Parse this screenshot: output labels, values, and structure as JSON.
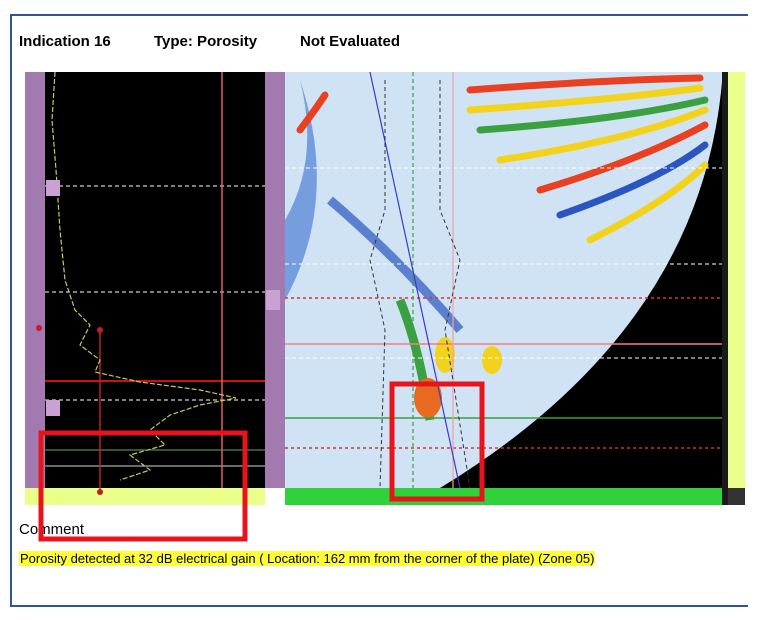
{
  "header": {
    "indication": "Indication 16",
    "type": "Type: Porosity",
    "status": "Not Evaluated"
  },
  "comment": {
    "label": "Comment",
    "text": "Porosity detected at 32 dB electrical gain ( Location: 162 mm from the corner of the plate) (Zone 05)"
  }
}
